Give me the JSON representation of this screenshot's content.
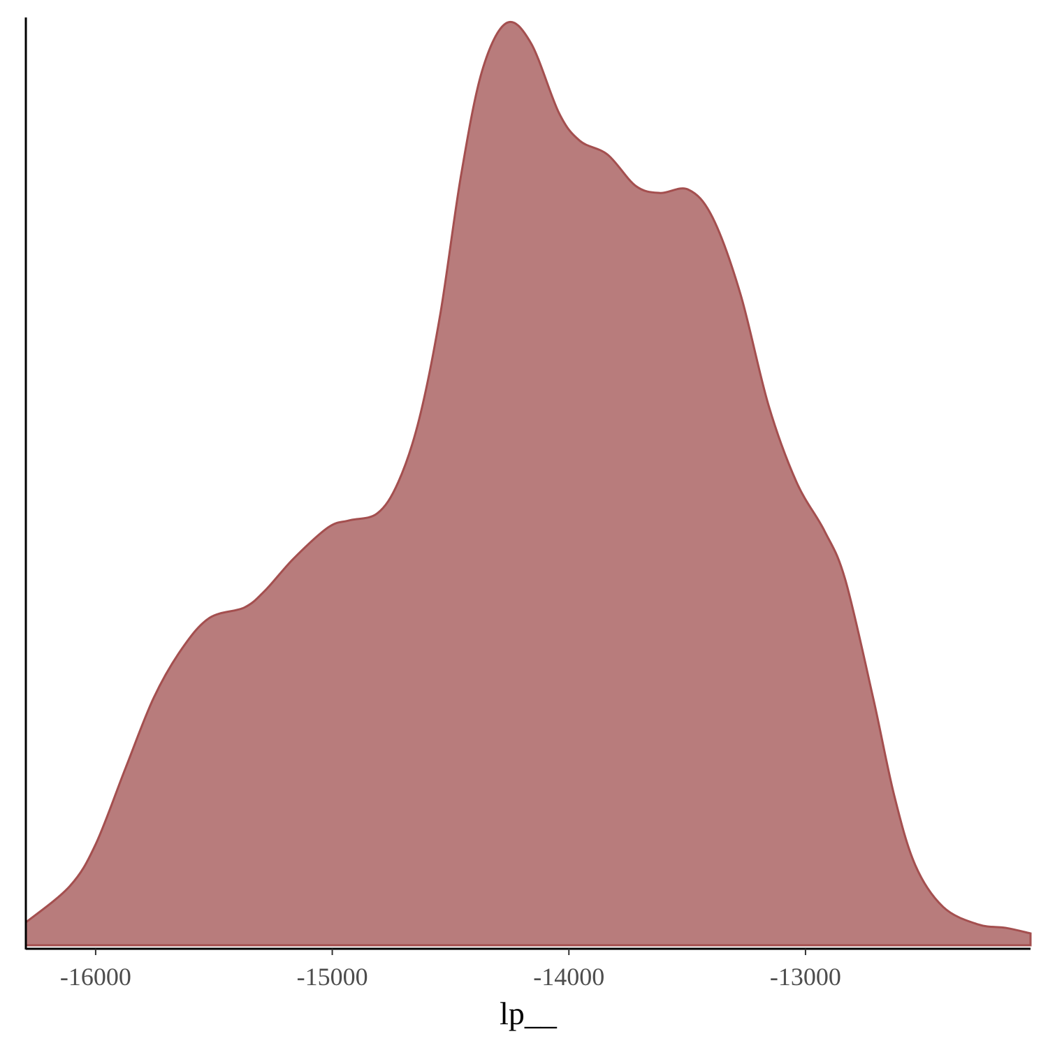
{
  "chart_data": {
    "type": "area",
    "x_label": "lp__",
    "x": [
      -16295,
      -16109,
      -16000,
      -15873,
      -15755,
      -15637,
      -15519,
      -15371,
      -15282,
      -15164,
      -15017,
      -14928,
      -14810,
      -14721,
      -14633,
      -14544,
      -14456,
      -14367,
      -14264,
      -14160,
      -14042,
      -13954,
      -13836,
      -13717,
      -13614,
      -13496,
      -13393,
      -13275,
      -13156,
      -13038,
      -12920,
      -12832,
      -12714,
      -12625,
      -12536,
      -12418,
      -12271,
      -12153,
      -12049
    ],
    "values": [
      1.25e-05,
      3.23e-05,
      5.51e-05,
      9.69e-05,
      0.0001349,
      0.0001615,
      0.0001786,
      0.0001843,
      0.0001938,
      0.0002109,
      0.000228,
      0.0002318,
      0.0002356,
      0.0002527,
      0.0002869,
      0.0003439,
      0.0004199,
      0.0004769,
      0.0005031,
      0.0004921,
      0.0004541,
      0.0004389,
      0.0004313,
      0.0004142,
      0.0004104,
      0.0004123,
      0.0003971,
      0.0003553,
      0.0002945,
      0.0002527,
      0.0002261,
      0.0001995,
      0.0001349,
      8.17e-05,
      4.37e-05,
      2.09e-05,
      1.14e-05,
      9.5e-06,
      6.5e-06
    ],
    "color": "#b87c7c",
    "line_color": "#a44f4f",
    "xlim": [
      -16295,
      -12049
    ],
    "xticks": [
      -16000,
      -15000,
      -14000,
      -13000
    ],
    "ylim": [
      0,
      0.000505
    ]
  }
}
